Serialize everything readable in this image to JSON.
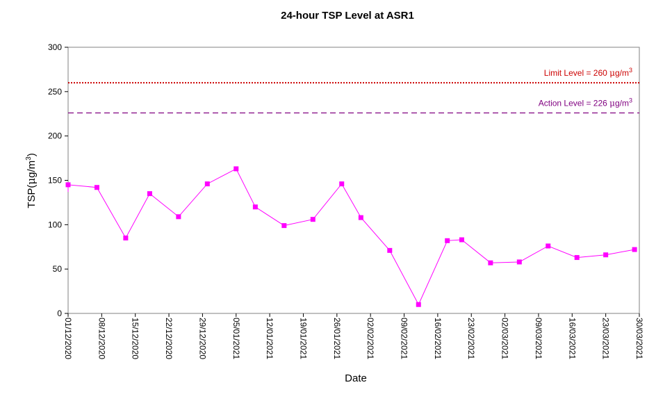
{
  "chart_data": {
    "type": "line",
    "title": "24-hour TSP Level at ASR1",
    "xlabel": "Date",
    "ylabel": "TSP(μg/m³)",
    "ylabel_parts": {
      "main": "TSP(",
      "mu": "μ",
      "unit": "g/m",
      "sup": "3",
      "close": ")"
    },
    "ylim": [
      0,
      300
    ],
    "yticks": [
      0,
      50,
      100,
      150,
      200,
      250,
      300
    ],
    "xlim": [
      "2020-12-01",
      "2021-03-30"
    ],
    "xticks": [
      "2020-12-01",
      "2020-12-08",
      "2020-12-15",
      "2020-12-22",
      "2020-12-29",
      "2021-01-05",
      "2021-01-12",
      "2021-01-19",
      "2021-01-26",
      "2021-02-02",
      "2021-02-09",
      "2021-02-16",
      "2021-02-23",
      "2021-03-02",
      "2021-03-09",
      "2021-03-16",
      "2021-03-23",
      "2021-03-30"
    ],
    "xtick_labels": [
      "01/12/2020",
      "08/12/2020",
      "15/12/2020",
      "22/12/2020",
      "29/12/2020",
      "05/01/2021",
      "12/01/2021",
      "19/01/2021",
      "26/01/2021",
      "02/02/2021",
      "09/02/2021",
      "16/02/2021",
      "23/02/2021",
      "02/03/2021",
      "09/03/2021",
      "16/03/2021",
      "23/03/2021",
      "30/03/2021"
    ],
    "grid": false,
    "series": [
      {
        "color": "#ff00ff",
        "marker": "square",
        "x": [
          "2020-12-01",
          "2020-12-07",
          "2020-12-13",
          "2020-12-18",
          "2020-12-24",
          "2020-12-30",
          "2021-01-05",
          "2021-01-09",
          "2021-01-15",
          "2021-01-21",
          "2021-01-27",
          "2021-01-31",
          "2021-02-06",
          "2021-02-12",
          "2021-02-18",
          "2021-02-21",
          "2021-02-27",
          "2021-03-05",
          "2021-03-11",
          "2021-03-17",
          "2021-03-23",
          "2021-03-29"
        ],
        "values": [
          145,
          142,
          85,
          135,
          109,
          146,
          163,
          120,
          99,
          106,
          146,
          108,
          71,
          10,
          82,
          83,
          57,
          58,
          76,
          63,
          66,
          72
        ]
      }
    ],
    "reference_lines": [
      {
        "value": 260,
        "color": "#cc0000",
        "style": "dotted",
        "label_text": "Limit Level  = 260 ",
        "label_mu": "μ",
        "label_unit": "g/m",
        "label_sup": "3"
      },
      {
        "value": 226,
        "color": "#800080",
        "style": "dashed",
        "label_text": "Action Level  = 226 ",
        "label_mu": "μ",
        "label_unit": "g/m",
        "label_sup": "3"
      }
    ]
  }
}
